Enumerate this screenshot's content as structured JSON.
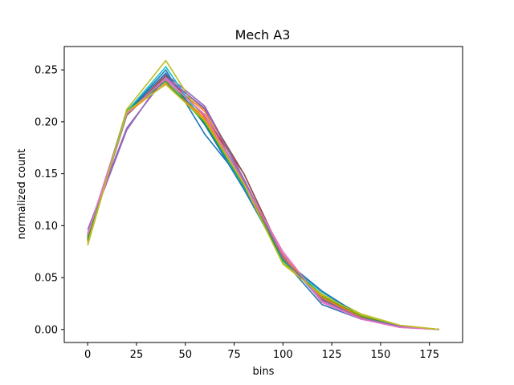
{
  "chart_data": {
    "type": "line",
    "title": "Mech A3",
    "xlabel": "bins",
    "ylabel": "normalized count",
    "xlim": [
      -12,
      192
    ],
    "ylim": [
      -0.0125,
      0.2725
    ],
    "xticks": [
      0,
      25,
      50,
      75,
      100,
      125,
      150,
      175
    ],
    "yticks": [
      0.0,
      0.05,
      0.1,
      0.15,
      0.2,
      0.25
    ],
    "ytick_labels": [
      "0.00",
      "0.05",
      "0.10",
      "0.15",
      "0.20",
      "0.25"
    ],
    "grid": false,
    "x": [
      0,
      20,
      40,
      60,
      80,
      100,
      120,
      140,
      160,
      180
    ],
    "series": [
      {
        "color": "#1f77b4",
        "values": [
          0.089,
          0.209,
          0.25,
          0.188,
          0.141,
          0.067,
          0.024,
          0.01,
          0.003,
          0.0
        ]
      },
      {
        "color": "#ff7f0e",
        "values": [
          0.09,
          0.21,
          0.241,
          0.21,
          0.14,
          0.068,
          0.03,
          0.013,
          0.004,
          0.0
        ]
      },
      {
        "color": "#2ca02c",
        "values": [
          0.086,
          0.211,
          0.241,
          0.202,
          0.138,
          0.066,
          0.032,
          0.012,
          0.003,
          0.0
        ]
      },
      {
        "color": "#d62728",
        "values": [
          0.091,
          0.207,
          0.245,
          0.205,
          0.15,
          0.07,
          0.03,
          0.011,
          0.003,
          0.0
        ]
      },
      {
        "color": "#9467bd",
        "values": [
          0.093,
          0.192,
          0.246,
          0.215,
          0.145,
          0.07,
          0.027,
          0.01,
          0.003,
          0.0
        ]
      },
      {
        "color": "#8c564b",
        "values": [
          0.085,
          0.208,
          0.244,
          0.212,
          0.15,
          0.071,
          0.029,
          0.011,
          0.003,
          0.0
        ]
      },
      {
        "color": "#e377c2",
        "values": [
          0.092,
          0.209,
          0.24,
          0.207,
          0.14,
          0.073,
          0.026,
          0.01,
          0.002,
          0.0
        ]
      },
      {
        "color": "#7f7f7f",
        "values": [
          0.087,
          0.206,
          0.243,
          0.206,
          0.143,
          0.069,
          0.03,
          0.012,
          0.003,
          0.0
        ]
      },
      {
        "color": "#bcbd22",
        "values": [
          0.081,
          0.212,
          0.259,
          0.2,
          0.14,
          0.064,
          0.034,
          0.015,
          0.004,
          0.0
        ]
      },
      {
        "color": "#17becf",
        "values": [
          0.088,
          0.21,
          0.253,
          0.198,
          0.136,
          0.066,
          0.036,
          0.013,
          0.003,
          0.0
        ]
      },
      {
        "color": "#1f77b4",
        "values": [
          0.09,
          0.209,
          0.247,
          0.197,
          0.135,
          0.068,
          0.037,
          0.013,
          0.003,
          0.0
        ]
      },
      {
        "color": "#ff7f0e",
        "values": [
          0.088,
          0.208,
          0.237,
          0.203,
          0.142,
          0.07,
          0.031,
          0.012,
          0.003,
          0.0
        ]
      },
      {
        "color": "#2ca02c",
        "values": [
          0.087,
          0.21,
          0.239,
          0.199,
          0.139,
          0.067,
          0.033,
          0.013,
          0.003,
          0.0
        ]
      },
      {
        "color": "#9467bd",
        "values": [
          0.096,
          0.194,
          0.243,
          0.213,
          0.144,
          0.069,
          0.028,
          0.011,
          0.003,
          0.0
        ]
      },
      {
        "color": "#e377c2",
        "values": [
          0.091,
          0.208,
          0.242,
          0.206,
          0.141,
          0.075,
          0.027,
          0.01,
          0.002,
          0.0
        ]
      },
      {
        "color": "#bcbd22",
        "values": [
          0.083,
          0.21,
          0.236,
          0.201,
          0.14,
          0.063,
          0.033,
          0.014,
          0.004,
          0.0
        ]
      }
    ]
  }
}
